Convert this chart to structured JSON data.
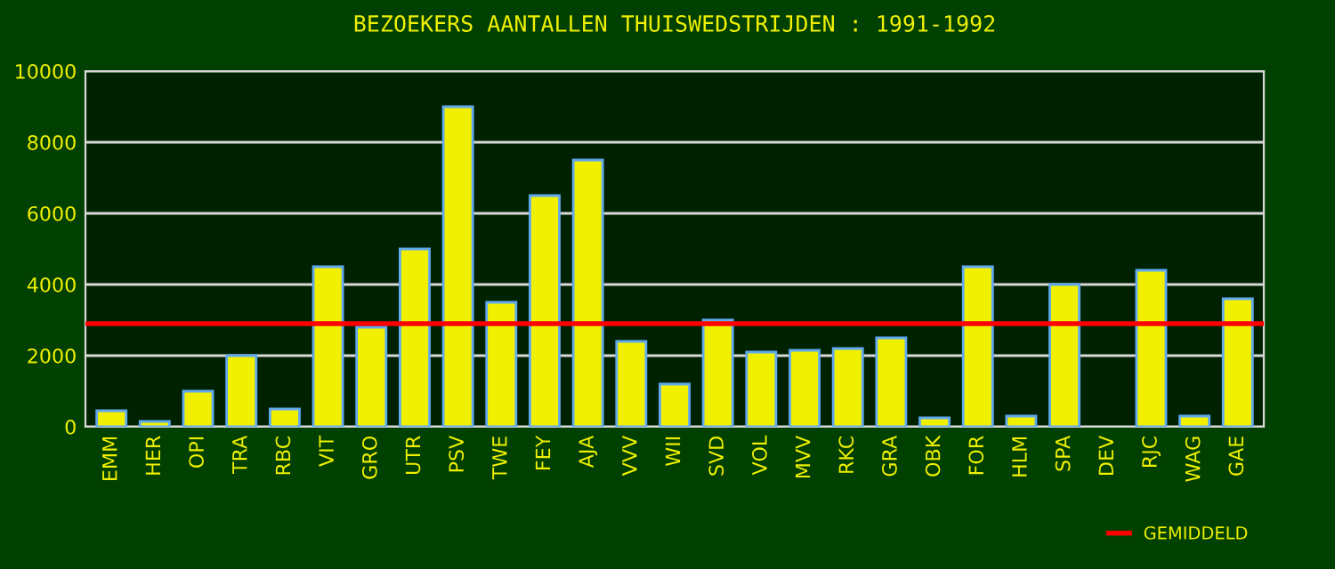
{
  "chart_data": {
    "type": "bar",
    "title": "BEZOEKERS AANTALLEN THUISWEDSTRIJDEN : 1991-1992",
    "categories": [
      "EMM",
      "HER",
      "OPI",
      "TRA",
      "RBC",
      "VIT",
      "GRO",
      "UTR",
      "PSV",
      "TWE",
      "FEY",
      "AJA",
      "VVV",
      "WII",
      "SVD",
      "VOL",
      "MVV",
      "RKC",
      "GRA",
      "OBK",
      "FOR",
      "HLM",
      "SPA",
      "DEV",
      "RJC",
      "WAG",
      "GAE"
    ],
    "values": [
      450,
      150,
      1000,
      2000,
      500,
      4500,
      2800,
      5000,
      9000,
      3500,
      6500,
      7500,
      2400,
      1200,
      3000,
      2100,
      2150,
      2200,
      2500,
      250,
      4500,
      300,
      4000,
      null,
      4400,
      300,
      3600
    ],
    "color": "#f0f000",
    "ylim": [
      0,
      10000
    ],
    "yticks": [
      0,
      2000,
      4000,
      6000,
      8000,
      10000
    ],
    "grid": "y",
    "ref_lines": [
      {
        "axis": "y",
        "value": 2900,
        "label": "GEMIDDELD",
        "color": "#ff0000"
      }
    ],
    "legend": "bottom right"
  }
}
